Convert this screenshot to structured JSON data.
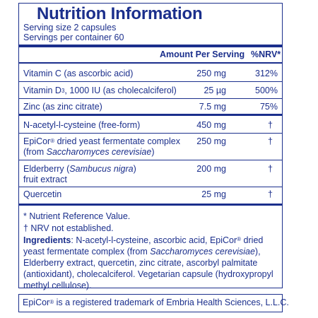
{
  "title": "Nutrition Information",
  "serving_size": "Serving size  2 capsules",
  "servings_per_container": "Servings per container  60",
  "header": {
    "amount": "Amount Per Serving",
    "nrv": "%NRV*"
  },
  "rows": [
    {
      "name": "Vitamin C (as ascorbic acid)",
      "amount": "250 mg",
      "nrv": "312%"
    },
    {
      "name_part1": "Vitamin D",
      "name_sub": "3",
      "name_part2": ", 1000 IU (as cholecalciferol)",
      "amount": "25 µg",
      "nrv": "500%"
    },
    {
      "name": "Zinc (as zinc citrate)",
      "amount": "7.5 mg",
      "nrv": "75%"
    },
    {
      "name": "N-acetyl-l-cysteine (free-form)",
      "amount": "450 mg",
      "nrv": "†"
    },
    {
      "name_part1": "EpiCor",
      "name_sup": "®",
      "name_part2": " dried yeast fermentate complex",
      "line2_prefix": "(from ",
      "line2_italic": "Saccharomyces cerevisiae",
      "line2_suffix": ")",
      "amount": "250 mg",
      "nrv": "†"
    },
    {
      "name_part1": "Elderberry (",
      "name_italic": "Sambucus nigra",
      "name_part2": ")",
      "line2": "fruit extract",
      "amount": "200 mg",
      "nrv": "†"
    },
    {
      "name": "Quercetin",
      "amount": "25 mg",
      "nrv": "†"
    }
  ],
  "footnotes": {
    "nrv_note": "* Nutrient Reference Value.",
    "not_established": "† NRV not established.",
    "ingredients_label": "Ingredients",
    "ing_1": ": N-acetyl-l-cysteine, ascorbic acid, EpiCor",
    "ing_reg": "®",
    "ing_2": " dried yeast fermentate complex (from ",
    "ing_italic": "Saccharomyces cerevisiae",
    "ing_3": "), Elderberry extract, quercetin, zinc citrate, ascorbyl palmitate (antioxidant), cholecalciferol. Vegetarian capsule (hydroxypropyl methyl cellulose)."
  },
  "trademark": {
    "part1": "EpiCor",
    "reg": "®",
    "part2": " is a registered trademark of Embria Health Sciences, L.L.C."
  },
  "colors": {
    "text": "#1b2f8c",
    "border": "#1b2f8c",
    "background": "#ffffff"
  }
}
